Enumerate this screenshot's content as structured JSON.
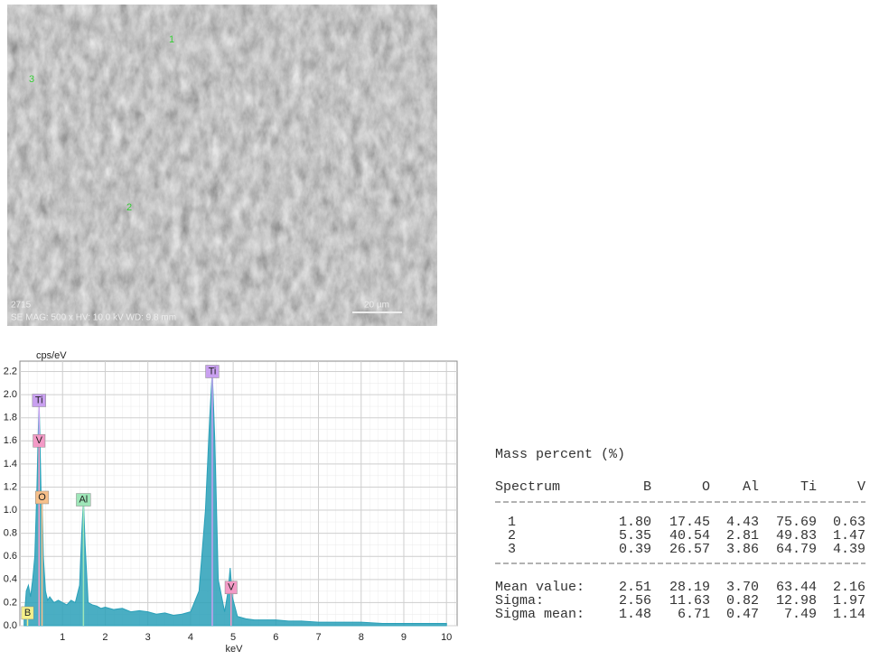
{
  "sem_image": {
    "spot_labels": [
      "1",
      "3",
      "2"
    ],
    "id": "2715",
    "info": "SE MAG: 500 x HV: 10.0 kV WD: 9.8 mm",
    "scale": "20 µm"
  },
  "chart_data": {
    "type": "area",
    "y_label": "cps/eV",
    "x_label": "keV",
    "color": "#2aa0b8",
    "x": [
      0.1,
      0.15,
      0.2,
      0.25,
      0.3,
      0.35,
      0.4,
      0.45,
      0.5,
      0.52,
      0.55,
      0.6,
      0.65,
      0.7,
      0.8,
      0.9,
      1.0,
      1.1,
      1.2,
      1.3,
      1.4,
      1.45,
      1.49,
      1.53,
      1.6,
      1.7,
      1.8,
      1.9,
      2.0,
      2.2,
      2.4,
      2.6,
      2.8,
      3.0,
      3.2,
      3.4,
      3.6,
      3.8,
      4.0,
      4.2,
      4.35,
      4.45,
      4.51,
      4.57,
      4.65,
      4.8,
      4.88,
      4.93,
      4.98,
      5.1,
      5.3,
      5.5,
      5.7,
      6.0,
      6.3,
      6.6,
      7.0,
      7.5,
      8.0,
      8.5,
      9.0,
      9.5,
      10.0
    ],
    "values": [
      0.05,
      0.3,
      0.35,
      0.25,
      0.4,
      0.6,
      1.2,
      1.96,
      1.1,
      1.15,
      0.6,
      0.3,
      0.22,
      0.25,
      0.2,
      0.22,
      0.2,
      0.18,
      0.22,
      0.2,
      0.35,
      0.8,
      1.1,
      0.7,
      0.2,
      0.18,
      0.17,
      0.15,
      0.16,
      0.14,
      0.15,
      0.12,
      0.13,
      0.12,
      0.1,
      0.11,
      0.09,
      0.1,
      0.12,
      0.3,
      1.0,
      1.8,
      2.2,
      1.6,
      0.4,
      0.12,
      0.3,
      0.5,
      0.25,
      0.08,
      0.06,
      0.05,
      0.05,
      0.05,
      0.04,
      0.04,
      0.03,
      0.03,
      0.03,
      0.02,
      0.02,
      0.02,
      0.02
    ],
    "xlim": [
      0,
      10.25
    ],
    "ylim": [
      0,
      2.29
    ],
    "xticks": [
      1,
      2,
      3,
      4,
      5,
      6,
      7,
      8,
      9,
      10
    ],
    "yticks": [
      {
        "value": 0,
        "label": "0.0"
      },
      {
        "value": 0.2,
        "label": "0.2"
      },
      {
        "value": 0.4,
        "label": "0.4"
      },
      {
        "value": 0.6,
        "label": "0.6"
      },
      {
        "value": 0.8,
        "label": "0.8"
      },
      {
        "value": 1,
        "label": "1.0"
      },
      {
        "value": 1.2,
        "label": "1.2"
      },
      {
        "value": 1.4,
        "label": "1.4"
      },
      {
        "value": 1.6,
        "label": "1.6"
      },
      {
        "value": 1.8,
        "label": "1.8"
      },
      {
        "value": 2,
        "label": "2.0"
      },
      {
        "value": 2.2,
        "label": "2.2"
      }
    ],
    "peak_labels": [
      {
        "label": "Ti",
        "x": 0.45,
        "y": 1.95,
        "color": "#c9a0f0"
      },
      {
        "label": "V",
        "x": 0.45,
        "y": 1.6,
        "color": "#f39ac6"
      },
      {
        "label": "O",
        "x": 0.52,
        "y": 1.11,
        "color": "#f7c08a"
      },
      {
        "label": "Al",
        "x": 1.49,
        "y": 1.09,
        "color": "#9ee6b8"
      },
      {
        "label": "Ti",
        "x": 4.51,
        "y": 2.2,
        "color": "#c9a0f0"
      },
      {
        "label": "V",
        "x": 4.95,
        "y": 0.33,
        "color": "#f39ac6"
      },
      {
        "label": "B",
        "x": 0.18,
        "y": 0.11,
        "color": "#f5f08a"
      }
    ]
  },
  "table": {
    "title": "Mass percent (%)",
    "header": [
      "Spectrum",
      "B",
      "O",
      "Al",
      "Ti",
      "V"
    ],
    "rows": [
      [
        "1",
        "1.80",
        "17.45",
        "4.43",
        "75.69",
        "0.63"
      ],
      [
        "2",
        "5.35",
        "40.54",
        "2.81",
        "49.83",
        "1.47"
      ],
      [
        "3",
        "0.39",
        "26.57",
        "3.86",
        "64.79",
        "4.39"
      ]
    ],
    "summary": [
      [
        "Mean value:",
        "2.51",
        "28.19",
        "3.70",
        "63.44",
        "2.16"
      ],
      [
        "Sigma:",
        "2.56",
        "11.63",
        "0.82",
        "12.98",
        "1.97"
      ],
      [
        "Sigma mean:",
        "1.48",
        "6.71",
        "0.47",
        "7.49",
        "1.14"
      ]
    ]
  }
}
